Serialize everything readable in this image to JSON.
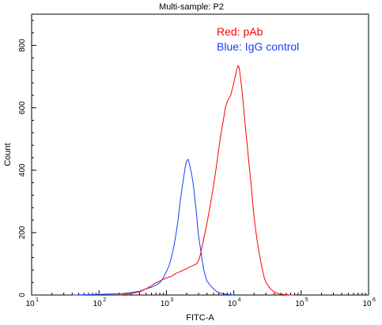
{
  "chart_data": {
    "type": "line",
    "title": "Multi-sample: P2",
    "xlabel": "FITC-A",
    "ylabel": "Count",
    "x_scale": "log",
    "xlim": [
      10,
      1000000
    ],
    "ylim": [
      0,
      900
    ],
    "x_ticks": [
      {
        "base": "10",
        "exp": "1"
      },
      {
        "base": "10",
        "exp": "2"
      },
      {
        "base": "10",
        "exp": "3"
      },
      {
        "base": "10",
        "exp": "4"
      },
      {
        "base": "10",
        "exp": "5"
      },
      {
        "base": "10",
        "exp": "6"
      }
    ],
    "y_ticks": [
      "0",
      "200",
      "400",
      "600",
      "800"
    ],
    "grid": false,
    "legend_position": "top-right",
    "legend": [
      {
        "text": "Red: pAb",
        "color": "#ff0000"
      },
      {
        "text": "Blue: IgG control",
        "color": "#1a3cff"
      }
    ],
    "series": [
      {
        "color": "#1a3cff",
        "x": [
          40,
          100,
          200,
          300,
          400,
          500,
          600,
          700,
          800,
          900,
          1000,
          1100,
          1200,
          1300,
          1400,
          1500,
          1600,
          1700,
          1800,
          1900,
          2000,
          2100,
          2200,
          2300,
          2400,
          2500,
          2600,
          2700,
          2800,
          2900,
          3000,
          3200,
          3400,
          3600,
          3800,
          4000,
          4500,
          5000,
          5500,
          6000,
          7000,
          8000,
          9000,
          10000
        ],
        "y": [
          0,
          2,
          4,
          8,
          12,
          20,
          25,
          32,
          40,
          55,
          75,
          95,
          125,
          160,
          200,
          245,
          300,
          340,
          375,
          410,
          430,
          435,
          420,
          400,
          380,
          355,
          325,
          290,
          260,
          220,
          190,
          150,
          110,
          80,
          60,
          45,
          30,
          20,
          12,
          8,
          4,
          2,
          1,
          0
        ]
      },
      {
        "color": "#ff0000",
        "x": [
          200,
          300,
          400,
          500,
          600,
          700,
          800,
          900,
          1000,
          1200,
          1400,
          1600,
          1800,
          2000,
          2200,
          2500,
          2800,
          3000,
          3200,
          3500,
          4000,
          4500,
          5000,
          5500,
          6000,
          6500,
          7000,
          7500,
          8000,
          8500,
          9000,
          9500,
          10000,
          10500,
          11000,
          11500,
          12000,
          12500,
          13000,
          13500,
          14000,
          15000,
          16000,
          17000,
          18000,
          19000,
          20000,
          22000,
          24000,
          26000,
          28000,
          30000,
          35000,
          40000,
          45000,
          50000,
          60000,
          70000,
          80000
        ],
        "y": [
          0,
          5,
          10,
          20,
          30,
          40,
          45,
          50,
          55,
          60,
          70,
          75,
          80,
          85,
          90,
          95,
          100,
          110,
          130,
          170,
          230,
          290,
          350,
          410,
          470,
          520,
          560,
          600,
          620,
          630,
          640,
          660,
          680,
          700,
          720,
          735,
          730,
          700,
          670,
          640,
          600,
          530,
          470,
          410,
          360,
          300,
          250,
          180,
          130,
          90,
          60,
          40,
          20,
          10,
          5,
          3,
          1,
          0,
          0
        ]
      }
    ]
  }
}
